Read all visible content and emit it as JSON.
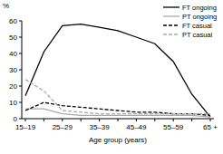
{
  "chart_data": {
    "type": "line",
    "y_label": "%",
    "x_label": "Age group (years)",
    "categories": [
      "15–19",
      null,
      "25–29",
      null,
      "35–39",
      null,
      "45–49",
      null,
      "55–59",
      null,
      "65 +"
    ],
    "series": [
      {
        "name": "FT ongoing",
        "color": "#000000",
        "line_style": "solid",
        "values": [
          14,
          41,
          57,
          58,
          56,
          54,
          50,
          46,
          35,
          15,
          1
        ]
      },
      {
        "name": "PT ongoing",
        "color": "#aaaaaa",
        "line_style": "solid",
        "values": [
          6,
          6,
          3,
          2,
          2,
          2,
          2,
          2,
          2,
          2,
          1
        ]
      },
      {
        "name": "FT casual",
        "color": "#000000",
        "line_style": "dashed",
        "values": [
          5,
          10,
          8,
          7,
          6,
          5,
          4,
          4,
          3,
          3,
          2
        ]
      },
      {
        "name": "PT casual",
        "color": "#aaaaaa",
        "line_style": "dashed",
        "values": [
          24,
          17,
          5,
          4,
          3,
          3,
          3,
          3,
          3,
          3,
          3
        ]
      }
    ],
    "ylim": [
      0,
      60
    ],
    "yticks": [
      0,
      10,
      20,
      30,
      40,
      50,
      60
    ],
    "legend": "top-right",
    "grid": false
  }
}
